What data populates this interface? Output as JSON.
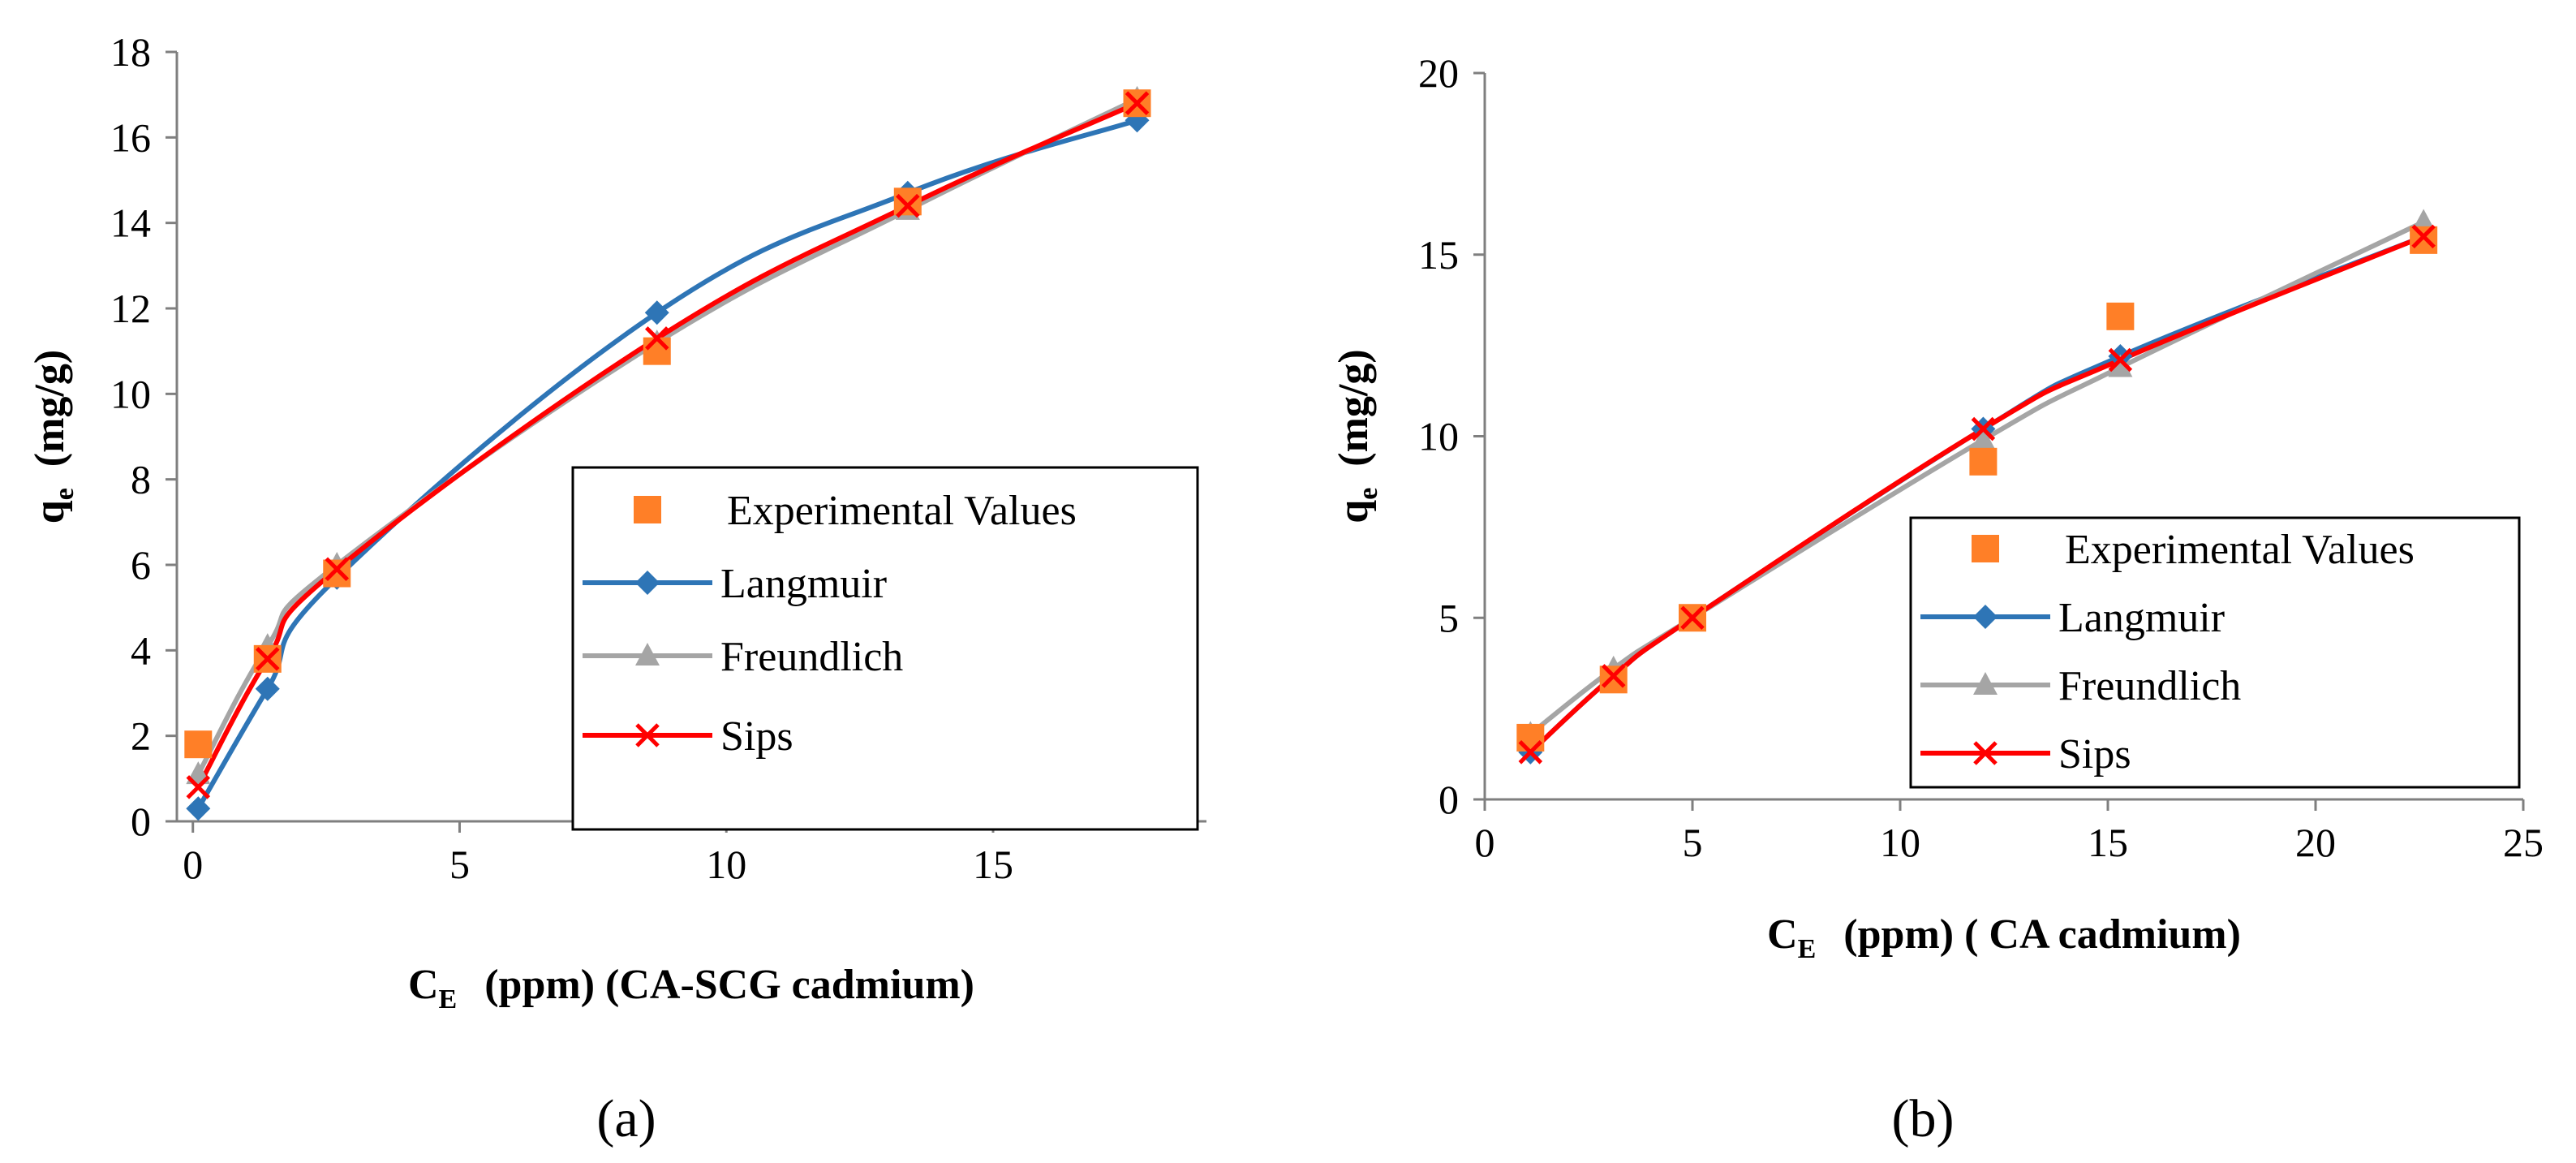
{
  "colors": {
    "experimental": "#ff7f27",
    "langmuir": "#2e75b6",
    "freundlich": "#a5a5a5",
    "sips": "#ff0000"
  },
  "chart_data": [
    {
      "type": "line",
      "panel_label": "(a)",
      "xlabel": {
        "main": "C",
        "sub": "E",
        "rest": "(ppm) (CA-SCG cadmium)"
      },
      "ylabel": {
        "main": "q",
        "sub": "e",
        "rest": "(mg/g)"
      },
      "xlim": [
        -0.3,
        19
      ],
      "ylim": [
        0,
        18
      ],
      "xticks": [
        0,
        5,
        10,
        15
      ],
      "yticks": [
        0,
        2,
        4,
        6,
        8,
        10,
        12,
        14,
        16,
        18
      ],
      "legend_position": "right",
      "series": [
        {
          "name": "Experimental Values",
          "key": "experimental",
          "marker": "square",
          "line": false,
          "x": [
            0.1,
            1.4,
            2.7,
            8.7,
            13.4,
            17.7
          ],
          "y": [
            1.8,
            3.8,
            5.8,
            11.0,
            14.5,
            16.8
          ]
        },
        {
          "name": "Langmuir",
          "key": "langmuir",
          "marker": "diamond",
          "line": true,
          "x": [
            0.1,
            1.4,
            2.7,
            8.7,
            13.4,
            17.7
          ],
          "y": [
            0.3,
            3.1,
            5.7,
            11.9,
            14.7,
            16.4
          ]
        },
        {
          "name": "Freundlich",
          "key": "freundlich",
          "marker": "triangle",
          "line": true,
          "x": [
            0.1,
            1.4,
            2.7,
            8.7,
            13.4,
            17.7
          ],
          "y": [
            1.1,
            4.1,
            6.0,
            11.2,
            14.3,
            16.9
          ]
        },
        {
          "name": "Sips",
          "key": "sips",
          "marker": "x",
          "line": true,
          "x": [
            0.1,
            1.4,
            2.7,
            8.7,
            13.4,
            17.7
          ],
          "y": [
            0.8,
            3.8,
            5.9,
            11.3,
            14.4,
            16.8
          ]
        }
      ]
    },
    {
      "type": "line",
      "panel_label": "(b)",
      "xlabel": {
        "main": "C",
        "sub": "E",
        "rest": "(ppm) ( CA cadmium)"
      },
      "ylabel": {
        "main": "q",
        "sub": "e",
        "rest": "(mg/g)"
      },
      "xlim": [
        0,
        25
      ],
      "ylim": [
        0,
        20
      ],
      "xticks": [
        0,
        5,
        10,
        15,
        20,
        25
      ],
      "yticks": [
        0,
        5,
        10,
        15,
        20
      ],
      "legend_position": "right",
      "series": [
        {
          "name": "Experimental Values",
          "key": "experimental",
          "marker": "square",
          "line": false,
          "x": [
            1.1,
            3.1,
            5.0,
            12.0,
            15.3,
            22.6
          ],
          "y": [
            1.7,
            3.3,
            5.0,
            9.3,
            13.3,
            15.4
          ]
        },
        {
          "name": "Langmuir",
          "key": "langmuir",
          "marker": "diamond",
          "line": true,
          "x": [
            1.1,
            3.1,
            5.0,
            12.0,
            15.3,
            22.6
          ],
          "y": [
            1.3,
            3.4,
            5.0,
            10.2,
            12.2,
            15.5
          ]
        },
        {
          "name": "Freundlich",
          "key": "freundlich",
          "marker": "triangle",
          "line": true,
          "x": [
            1.1,
            3.1,
            5.0,
            12.0,
            15.3,
            22.6
          ],
          "y": [
            1.8,
            3.6,
            5.0,
            9.9,
            11.9,
            15.9
          ]
        },
        {
          "name": "Sips",
          "key": "sips",
          "marker": "x",
          "line": true,
          "x": [
            1.1,
            3.1,
            5.0,
            12.0,
            15.3,
            22.6
          ],
          "y": [
            1.3,
            3.4,
            5.0,
            10.2,
            12.1,
            15.5
          ]
        }
      ]
    }
  ]
}
